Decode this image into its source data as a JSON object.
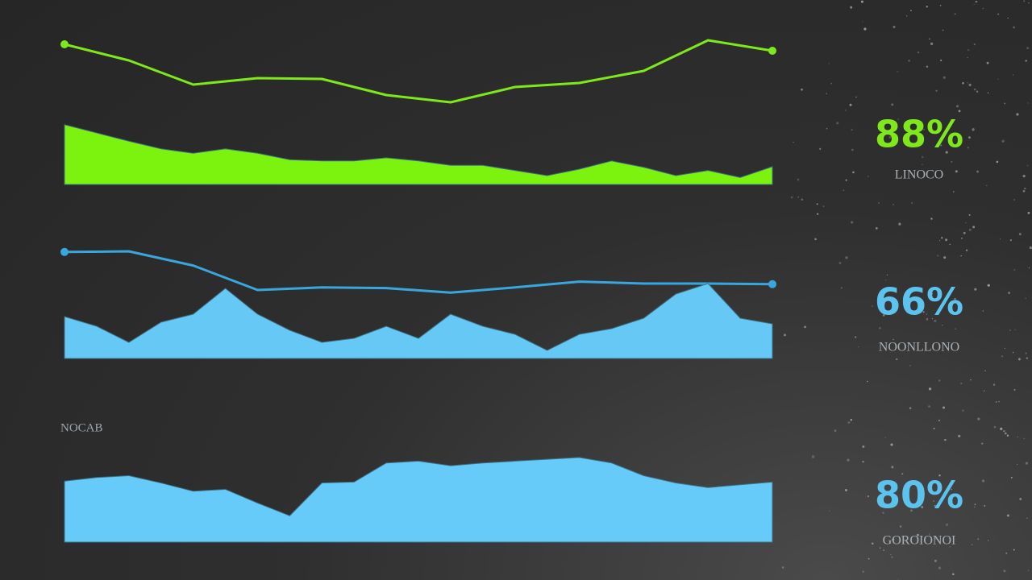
{
  "chart_data": [
    {
      "type": "line",
      "color": "#7ee81c",
      "ylim": [
        0,
        100
      ],
      "values": [
        85,
        65,
        35,
        43,
        42,
        22,
        13,
        32,
        37,
        52,
        90,
        77
      ]
    },
    {
      "type": "area",
      "color": "#7cf20f",
      "ylim": [
        0,
        100
      ],
      "values": [
        94,
        81,
        68,
        56,
        49,
        56,
        49,
        39,
        37,
        37,
        42,
        37,
        30,
        30,
        22,
        14,
        24,
        37,
        27,
        14,
        22,
        11,
        28
      ]
    },
    {
      "type": "line",
      "color": "#3aa6de",
      "ylim": [
        0,
        100
      ],
      "values": [
        84,
        85,
        63,
        25,
        29,
        28,
        21,
        29,
        38,
        35,
        35,
        34
      ]
    },
    {
      "type": "area",
      "color": "#66c9f5",
      "ylim": [
        0,
        100
      ],
      "values": [
        52,
        40,
        20,
        45,
        55,
        87,
        55,
        35,
        20,
        25,
        40,
        25,
        55,
        40,
        30,
        10,
        30,
        37,
        50,
        80,
        93,
        50,
        43
      ]
    },
    {
      "type": "area",
      "color": "#66cbf8",
      "ylim": [
        0,
        100
      ],
      "title": "NOCAB",
      "values": [
        67,
        71,
        73,
        65,
        56,
        58,
        43,
        29,
        65,
        66,
        87,
        89,
        84,
        87,
        89,
        91,
        93,
        87,
        73,
        65,
        60,
        63,
        66
      ]
    }
  ],
  "readouts": [
    {
      "value": "88%",
      "caption": "LINOCO",
      "color": "#7ee81c"
    },
    {
      "value": "66%",
      "caption": "NOONLLONO",
      "color": "#5cc3ef"
    },
    {
      "value": "80%",
      "caption": "GOROIONOI",
      "color": "#5cc3ef"
    }
  ]
}
